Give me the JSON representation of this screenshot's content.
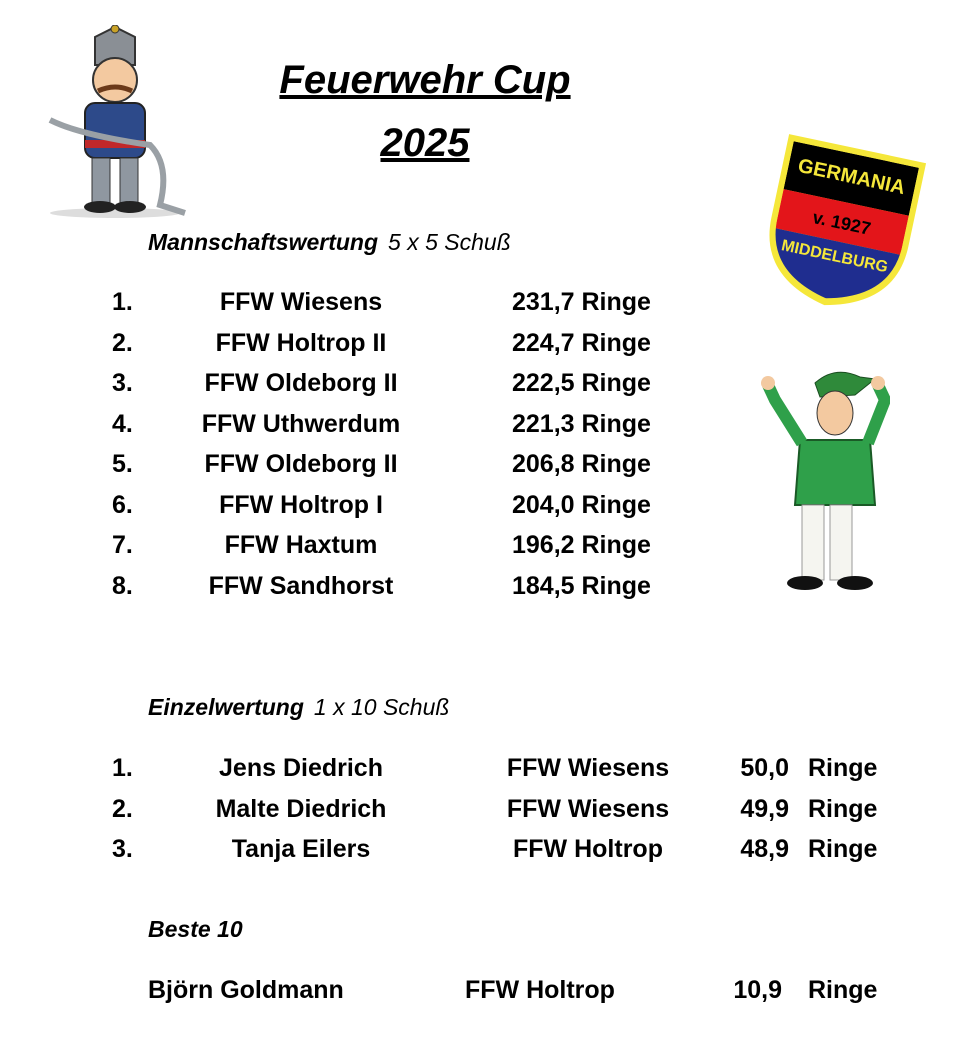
{
  "title_line1": "Feuerwehr Cup ",
  "title_line2": "2025",
  "logo": {
    "text_top": "GERMANIA",
    "text_mid": "v. 1927",
    "text_bottom": "MIDDELBURG",
    "colors": [
      "#000000",
      "#e3151a",
      "#1f2d8f",
      "#f5e73a"
    ]
  },
  "team": {
    "heading": "Mannschaftswertung",
    "subheading": "5 x 5 Schuß",
    "rows": [
      {
        "rank": "1.",
        "team": "FFW Wiesens",
        "score": "231,7 Ringe"
      },
      {
        "rank": "2.",
        "team": "FFW Holtrop II",
        "score": "224,7 Ringe"
      },
      {
        "rank": "3.",
        "team": "FFW Oldeborg II",
        "score": "222,5 Ringe"
      },
      {
        "rank": "4.",
        "team": "FFW Uthwerdum",
        "score": "221,3 Ringe"
      },
      {
        "rank": "5.",
        "team": "FFW Oldeborg II",
        "score": "206,8 Ringe"
      },
      {
        "rank": "6.",
        "team": "FFW Holtrop I",
        "score": "204,0 Ringe"
      },
      {
        "rank": "7.",
        "team": "FFW Haxtum",
        "score": "196,2 Ringe"
      },
      {
        "rank": "8.",
        "team": "FFW Sandhorst",
        "score": "184,5 Ringe"
      }
    ]
  },
  "single": {
    "heading": "Einzelwertung",
    "subheading": "1 x 10 Schuß",
    "rows": [
      {
        "rank": "1.",
        "name": "Jens Diedrich",
        "club": "FFW Wiesens",
        "score": "50,0",
        "unit": "Ringe"
      },
      {
        "rank": "2.",
        "name": "Malte Diedrich",
        "club": "FFW Wiesens",
        "score": "49,9",
        "unit": "Ringe"
      },
      {
        "rank": "3.",
        "name": "Tanja Eilers",
        "club": "FFW Holtrop",
        "score": "48,9",
        "unit": "Ringe"
      }
    ]
  },
  "best": {
    "heading": "Beste 10",
    "name": "Björn Goldmann",
    "club": "FFW Holtrop",
    "score": "10,9",
    "unit": "Ringe"
  }
}
